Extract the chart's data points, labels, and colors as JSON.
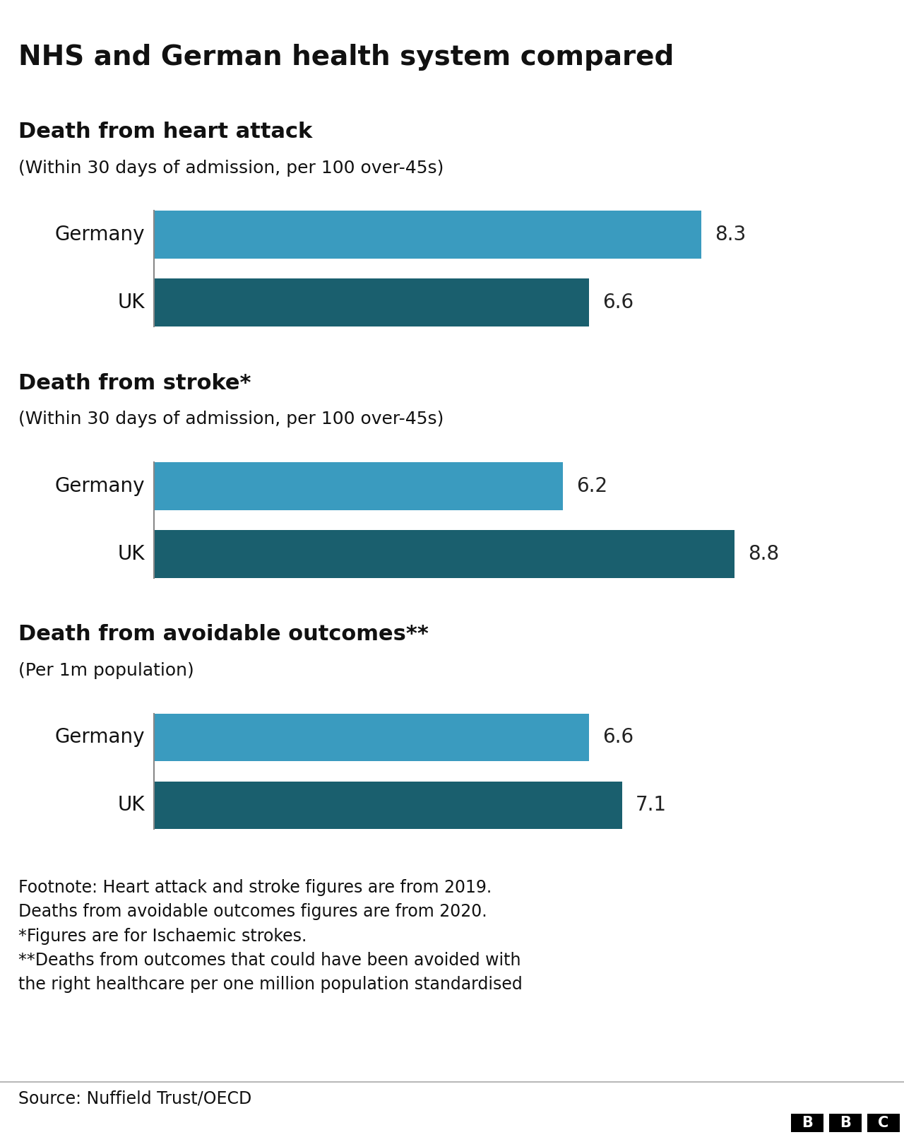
{
  "title": "NHS and German health system compared",
  "title_fontsize": 28,
  "background_color": "#ffffff",
  "sections": [
    {
      "title": "Death from heart attack",
      "subtitle": "(Within 30 days of admission, per 100 over-45s)",
      "bars": [
        {
          "label": "Germany",
          "value": 8.3,
          "color": "#3a9bbf"
        },
        {
          "label": "UK",
          "value": 6.6,
          "color": "#1a5f6e"
        }
      ],
      "xlim": [
        0,
        10
      ]
    },
    {
      "title": "Death from stroke*",
      "subtitle": "(Within 30 days of admission, per 100 over-45s)",
      "bars": [
        {
          "label": "Germany",
          "value": 6.2,
          "color": "#3a9bbf"
        },
        {
          "label": "UK",
          "value": 8.8,
          "color": "#1a5f6e"
        }
      ],
      "xlim": [
        0,
        10
      ]
    },
    {
      "title": "Death from avoidable outcomes**",
      "subtitle": "(Per 1m population)",
      "bars": [
        {
          "label": "Germany",
          "value": 6.6,
          "color": "#3a9bbf"
        },
        {
          "label": "UK",
          "value": 7.1,
          "color": "#1a5f6e"
        }
      ],
      "xlim": [
        0,
        10
      ]
    }
  ],
  "footnote_lines": [
    "Footnote: Heart attack and stroke figures are from 2019.",
    "Deaths from avoidable outcomes figures are from 2020.",
    "*Figures are for Ischaemic strokes.",
    "**Deaths from outcomes that could have been avoided with",
    "the right healthcare per one million population standardised"
  ],
  "source_text": "Source: Nuffield Trust/OECD",
  "label_fontsize": 20,
  "bar_label_fontsize": 20,
  "section_title_fontsize": 22,
  "subtitle_fontsize": 18,
  "footnote_fontsize": 17,
  "source_fontsize": 17,
  "value_label_color": "#222222",
  "text_color": "#111111",
  "bbc_box_color": "#000000",
  "bbc_text_color": "#ffffff",
  "divider_color": "#aaaaaa",
  "vline_color": "#888888"
}
